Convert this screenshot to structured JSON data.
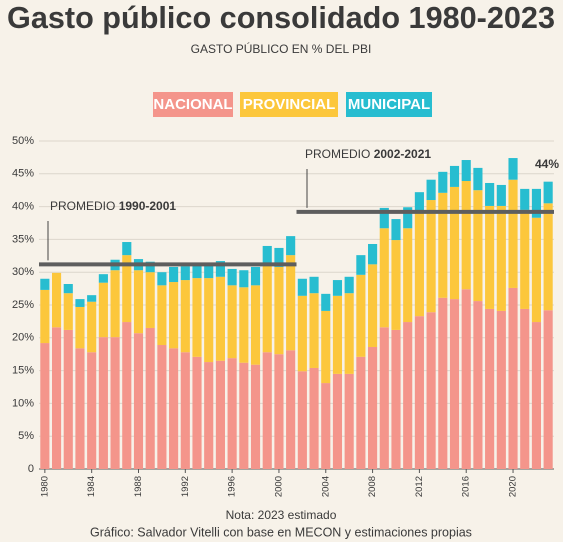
{
  "chart_data": {
    "type": "stacked_bar",
    "title": "Gasto público consolidado 1980-2023",
    "subtitle": "GASTO PÚBLICO EN % DEL PBI",
    "x": [
      1980,
      1981,
      1982,
      1983,
      1984,
      1985,
      1986,
      1987,
      1988,
      1989,
      1990,
      1991,
      1992,
      1993,
      1994,
      1995,
      1996,
      1997,
      1998,
      1999,
      2000,
      2001,
      2002,
      2003,
      2004,
      2005,
      2006,
      2007,
      2008,
      2009,
      2010,
      2011,
      2012,
      2013,
      2014,
      2015,
      2016,
      2017,
      2018,
      2019,
      2020,
      2021,
      2022,
      2023
    ],
    "xlim": [
      1979.5,
      2023.5
    ],
    "xticks": [
      1980,
      1984,
      1988,
      1992,
      1996,
      2000,
      2004,
      2008,
      2012,
      2016,
      2020
    ],
    "series": [
      {
        "name": "NACIONAL",
        "color": "#f4958b",
        "values": [
          19.2,
          21.6,
          21.2,
          18.4,
          17.8,
          20.1,
          20.1,
          22.4,
          20.7,
          21.5,
          18.9,
          18.4,
          17.8,
          17.1,
          16.3,
          16.5,
          16.9,
          16.2,
          15.9,
          17.8,
          17.5,
          18.1,
          14.9,
          15.4,
          13.1,
          14.5,
          14.5,
          17.1,
          18.6,
          21.6,
          21.2,
          22.4,
          23.3,
          23.9,
          26.1,
          25.9,
          27.4,
          25.6,
          24.4,
          24.1,
          27.6,
          24.4,
          22.4,
          24.2
        ]
      },
      {
        "name": "PROVINCIAL",
        "color": "#fcc73c",
        "values": [
          8.1,
          8.3,
          5.6,
          6.3,
          7.7,
          8.3,
          10.2,
          10.2,
          9.6,
          8.5,
          9.1,
          10.1,
          11.0,
          12.0,
          12.8,
          12.8,
          11.1,
          11.5,
          12.1,
          13.4,
          13.3,
          14.5,
          11.5,
          11.4,
          11.0,
          11.9,
          12.3,
          12.5,
          12.6,
          15.1,
          13.7,
          14.3,
          15.9,
          17.1,
          16.0,
          17.1,
          16.5,
          16.9,
          15.7,
          16.0,
          16.5,
          15.1,
          15.9,
          16.3
        ]
      },
      {
        "name": "MUNICIPAL",
        "color": "#27bdd0",
        "values": [
          1.7,
          0,
          1.4,
          1.2,
          1.0,
          1.3,
          1.6,
          2.0,
          1.7,
          1.6,
          2.0,
          2.3,
          2.1,
          2.1,
          2.3,
          2.4,
          2.5,
          2.6,
          2.8,
          2.8,
          2.9,
          2.9,
          2.6,
          2.5,
          2.6,
          2.4,
          2.5,
          3.0,
          3.1,
          3.1,
          3.2,
          3.2,
          3.0,
          3.1,
          3.2,
          3.2,
          3.2,
          3.4,
          3.5,
          3.2,
          3.3,
          3.2,
          4.4,
          3.3
        ]
      }
    ],
    "ylim": [
      0,
      50
    ],
    "yticks": [
      0,
      {
        "value": 5,
        "label": "5%"
      },
      {
        "value": 10,
        "label": "10%"
      },
      {
        "value": 15,
        "label": "15%"
      },
      {
        "value": 20,
        "label": "20%"
      },
      {
        "value": 25,
        "label": "25%"
      },
      {
        "value": 30,
        "label": "30%"
      },
      {
        "value": 35,
        "label": "35%"
      },
      {
        "value": 40,
        "label": "40%"
      },
      {
        "value": 45,
        "label": "45%"
      },
      {
        "value": 50,
        "label": "50%"
      }
    ],
    "grid": true,
    "averages": [
      {
        "label": "PROMEDIO",
        "period": "1990-2001",
        "value": 31.2,
        "xspan": [
          1980,
          2001
        ]
      },
      {
        "label": "PROMEDIO",
        "period": "2002-2021",
        "value": 39.2,
        "xspan": [
          2002,
          2023
        ]
      }
    ],
    "annotation": "44%",
    "note": "Nota: 2023 estimado",
    "source": "Gráfico: Salvador Vitelli con base en MECON y estimaciones propias"
  }
}
